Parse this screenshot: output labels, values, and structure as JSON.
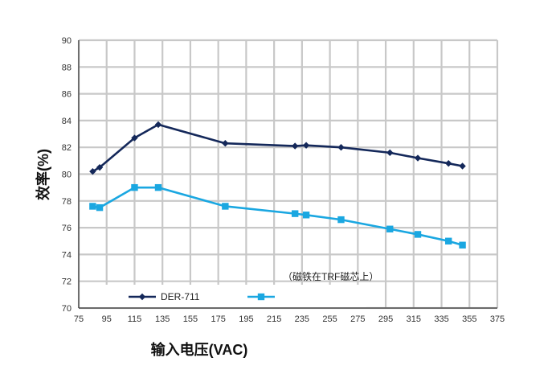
{
  "chart_data": {
    "type": "line",
    "xlabel": "输入电压(VAC)",
    "ylabel": "效率(%)",
    "xlim": [
      75,
      375
    ],
    "ylim": [
      70,
      90
    ],
    "x_ticks": [
      75,
      95,
      115,
      135,
      155,
      175,
      195,
      215,
      235,
      255,
      275,
      295,
      315,
      335,
      355,
      375
    ],
    "x_tick_labels": [
      "75",
      "95",
      "115",
      "135",
      "155",
      "175",
      "195",
      "215",
      "235",
      "255",
      "275",
      "295",
      "315",
      "335",
      "355",
      "375"
    ],
    "y_ticks": [
      70,
      72,
      74,
      76,
      78,
      80,
      82,
      84,
      86,
      88,
      90
    ],
    "y_tick_labels": [
      "70",
      "72",
      "74",
      "76",
      "78",
      "80",
      "82",
      "84",
      "86",
      "88",
      "90"
    ],
    "grid": true,
    "legend_position": "bottom-left",
    "annotation": "（磁铁在TRF磁芯上）",
    "series": [
      {
        "name": "DER-711",
        "color": "#14285a",
        "marker": "diamond",
        "x": [
          85,
          90,
          115,
          132,
          180,
          230,
          238,
          263,
          298,
          318,
          340,
          350
        ],
        "values": [
          80.2,
          80.5,
          82.7,
          83.7,
          82.3,
          82.1,
          82.15,
          82.0,
          81.6,
          81.2,
          80.8,
          80.6
        ]
      },
      {
        "name": "",
        "color": "#1aa7e1",
        "marker": "square",
        "x": [
          85,
          90,
          115,
          132,
          180,
          230,
          238,
          263,
          298,
          318,
          340,
          350
        ],
        "values": [
          77.6,
          77.5,
          79.0,
          79.0,
          77.6,
          77.05,
          76.95,
          76.6,
          75.9,
          75.5,
          75.0,
          74.7
        ]
      }
    ]
  }
}
